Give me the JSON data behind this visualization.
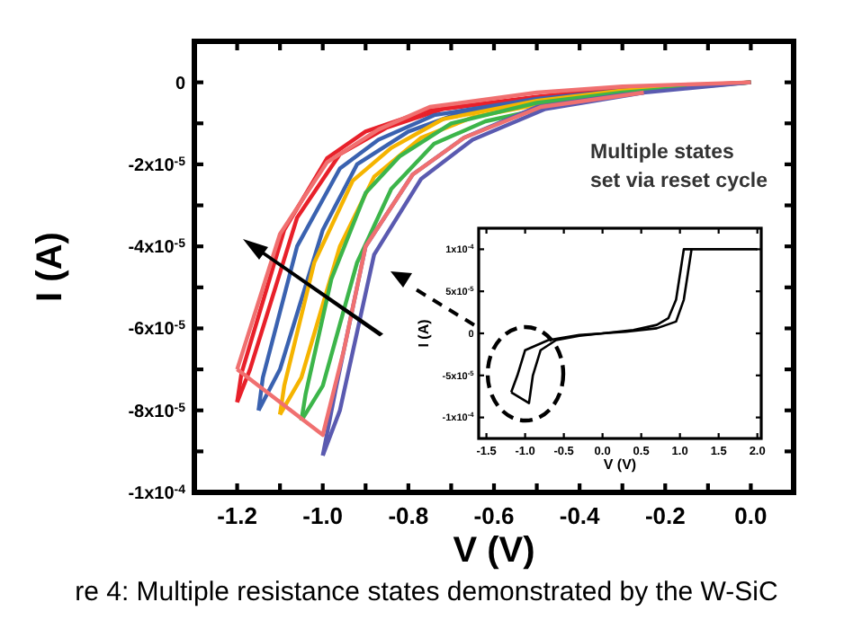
{
  "chart_data": [
    {
      "type": "line",
      "xlabel": "V (V)",
      "ylabel": "I (A)",
      "xlim": [
        -1.3,
        0.1
      ],
      "ylim": [
        -0.0001,
        1e-05
      ],
      "xticks": [
        {
          "value": -1.2,
          "label": "-1.2"
        },
        {
          "value": -1.1,
          "label": null
        },
        {
          "value": -1.0,
          "label": "-1.0"
        },
        {
          "value": -0.9,
          "label": null
        },
        {
          "value": -0.8,
          "label": "-0.8"
        },
        {
          "value": -0.7,
          "label": null
        },
        {
          "value": -0.6,
          "label": "-0.6"
        },
        {
          "value": -0.5,
          "label": null
        },
        {
          "value": -0.4,
          "label": "-0.4"
        },
        {
          "value": -0.3,
          "label": null
        },
        {
          "value": -0.2,
          "label": "-0.2"
        },
        {
          "value": -0.1,
          "label": null
        },
        {
          "value": 0,
          "label": "0.0"
        }
      ],
      "yticks": [
        {
          "value": -0.0001,
          "label": "-1x10$^{-4}$"
        },
        {
          "value": -9e-05,
          "label": null
        },
        {
          "value": -8e-05,
          "label": "-8x10$^{-5}$"
        },
        {
          "value": -7e-05,
          "label": null
        },
        {
          "value": -6e-05,
          "label": "-6x10$^{-5}$"
        },
        {
          "value": -5e-05,
          "label": null
        },
        {
          "value": -4e-05,
          "label": "-4x10$^{-5}$"
        },
        {
          "value": -3e-05,
          "label": null
        },
        {
          "value": -2e-05,
          "label": "-2x10$^{-5}$"
        },
        {
          "value": -1e-05,
          "label": null
        },
        0
      ],
      "line_style": "solid",
      "annotations": [
        "Multiple states\nset via reset cycle",
        "re 4: Multiple resistance states demonstrated by the W-SiC"
      ],
      "series": [
        {
          "color": "#e8202a",
          "x": [
            0,
            -0.3,
            -0.5,
            -0.76,
            -0.9,
            -0.99,
            -1.09,
            -1.19,
            -1.2
          ],
          "values": [
            0,
            -1.5e-06,
            -3.5e-06,
            -7e-06,
            -1.2e-05,
            -1.85e-05,
            -3.6e-05,
            -7.1e-05,
            -7.8e-05
          ]
        },
        {
          "color": "#e8202a",
          "x": [
            -1.2,
            -1.17,
            -1.06,
            -0.96,
            -0.85,
            -0.72,
            -0.45
          ],
          "values": [
            -7.8e-05,
            -7e-05,
            -3.3e-05,
            -1.75e-05,
            -1.1e-05,
            -6.5e-06,
            -3e-06
          ]
        },
        {
          "color": "#3a62b0",
          "x": [
            0,
            -0.3,
            -0.5,
            -0.74,
            -0.87,
            -0.96,
            -1.06,
            -1.14,
            -1.15
          ],
          "values": [
            0,
            -2e-06,
            -4e-06,
            -8e-06,
            -1.4e-05,
            -2.1e-05,
            -4e-05,
            -7.2e-05,
            -8e-05
          ]
        },
        {
          "color": "#3a62b0",
          "x": [
            -1.15,
            -1.1,
            -1.0,
            -0.92,
            -0.8,
            -0.68,
            -0.4
          ],
          "values": [
            -8e-05,
            -7e-05,
            -3.6e-05,
            -2e-05,
            -1.2e-05,
            -7.5e-06,
            -3e-06
          ]
        },
        {
          "color": "#f5b400",
          "x": [
            0,
            -0.3,
            -0.5,
            -0.72,
            -0.84,
            -0.93,
            -1.02,
            -1.09,
            -1.1
          ],
          "values": [
            0,
            -2e-06,
            -4.5e-06,
            -9e-06,
            -1.6e-05,
            -2.4e-05,
            -4.4e-05,
            -7.4e-05,
            -8.1e-05
          ]
        },
        {
          "color": "#f5b400",
          "x": [
            -1.1,
            -1.05,
            -0.96,
            -0.88,
            -0.77,
            -0.65,
            -0.4
          ],
          "values": [
            -8.1e-05,
            -7.2e-05,
            -4e-05,
            -2.3e-05,
            -1.35e-05,
            -8.5e-06,
            -3.5e-06
          ]
        },
        {
          "color": "#3cb54a",
          "x": [
            0,
            -0.3,
            -0.5,
            -0.7,
            -0.82,
            -0.9,
            -0.98,
            -1.04,
            -1.05
          ],
          "values": [
            0,
            -2.5e-06,
            -5e-06,
            -1e-05,
            -1.8e-05,
            -2.7e-05,
            -4.8e-05,
            -7.6e-05,
            -8.25e-05
          ]
        },
        {
          "color": "#3cb54a",
          "x": [
            -1.05,
            -1.0,
            -0.92,
            -0.84,
            -0.74,
            -0.62,
            -0.38
          ],
          "values": [
            -8.25e-05,
            -7.4e-05,
            -4.4e-05,
            -2.6e-05,
            -1.5e-05,
            -9.5e-06,
            -4e-06
          ]
        },
        {
          "color": "#5a5ab0",
          "x": [
            0,
            -0.3,
            -0.5,
            -0.67,
            -0.79,
            -0.9,
            -0.97,
            -1.0
          ],
          "values": [
            0,
            -3e-06,
            -6e-06,
            -1.35e-05,
            -2.25e-05,
            -4e-05,
            -7.5e-05,
            -9.1e-05
          ]
        },
        {
          "color": "#5a5ab0",
          "x": [
            -1.0,
            -0.96,
            -0.88,
            -0.77,
            -0.65,
            -0.48,
            -0.25
          ],
          "values": [
            -9.1e-05,
            -8e-05,
            -4.2e-05,
            -2.35e-05,
            -1.4e-05,
            -6.5e-06,
            -2.5e-06
          ]
        },
        {
          "color": "#f07070",
          "x": [
            0,
            -0.3,
            -0.5,
            -0.75,
            -0.87,
            -0.99,
            -1.1,
            -1.2
          ],
          "values": [
            0,
            -1e-06,
            -2.5e-06,
            -6e-06,
            -1.15e-05,
            -1.95e-05,
            -3.7e-05,
            -7e-05
          ]
        },
        {
          "color": "#f07070",
          "x": [
            -1.2,
            -1.0,
            -0.95,
            -0.9,
            -0.79,
            -0.67,
            -0.49,
            -0.25
          ],
          "values": [
            -7e-05,
            -8.6e-05,
            -6.5e-05,
            -4e-05,
            -2.25e-05,
            -1.35e-05,
            -6e-06,
            -2.5e-06
          ]
        }
      ]
    },
    {
      "type": "line",
      "xlabel": "V (V)",
      "ylabel": "I (A)",
      "xlim": [
        -1.6,
        2.05
      ],
      "ylim": [
        -0.000125,
        0.000125
      ],
      "xticks": [
        {
          "value": -1.5,
          "label": "-1.5"
        },
        {
          "value": -1.0,
          "label": "-1.0"
        },
        {
          "value": -0.5,
          "label": "-0.5"
        },
        {
          "value": 0,
          "label": "0.0"
        },
        {
          "value": 0.5,
          "label": "0.5"
        },
        {
          "value": 1.0,
          "label": "1.0"
        },
        {
          "value": 1.5,
          "label": "1.5"
        },
        {
          "value": 2.0,
          "label": "2.0"
        }
      ],
      "yticks": [
        {
          "value": -0.0001,
          "label": "-1x10$^{-4}$"
        },
        {
          "value": -5e-05,
          "label": "-5x10$^{-5}$"
        },
        0,
        {
          "value": 5e-05,
          "label": "5x10$^{-5}$"
        },
        {
          "value": 0.0001,
          "label": "1x10$^{-4}$"
        }
      ],
      "line_style": "solid",
      "series": [
        {
          "color": "#000000",
          "x": [
            -1.18,
            -1.1,
            -1.0,
            -0.7,
            -0.3,
            0,
            0.4,
            0.7,
            0.85,
            0.95,
            1.0,
            1.05,
            2.0
          ],
          "values": [
            -7e-05,
            -5e-05,
            -2e-05,
            -8e-06,
            -2e-06,
            0,
            4e-06,
            1e-05,
            1.8e-05,
            4e-05,
            7e-05,
            0.0001,
            0.0001
          ]
        },
        {
          "color": "#000000",
          "x": [
            1.15,
            1.1,
            1.05,
            0.95,
            0.7,
            0.3,
            0,
            -0.3,
            -0.6,
            -0.8,
            -0.9,
            -0.95,
            -1.18
          ],
          "values": [
            0.0001,
            7e-05,
            4e-05,
            1.4e-05,
            6e-06,
            2e-06,
            0,
            -3e-06,
            -8e-06,
            -2e-05,
            -5e-05,
            -8.3e-05,
            -7e-05
          ]
        }
      ]
    }
  ]
}
